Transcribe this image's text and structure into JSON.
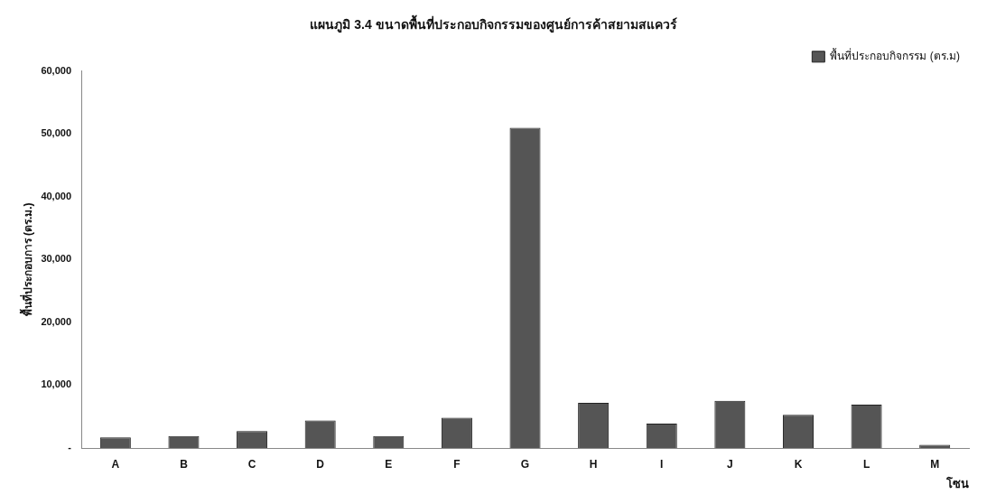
{
  "chart_data": {
    "type": "bar",
    "title": "แผนภูมิ 3.4 ขนาดพื้นที่ประกอบกิจกรรมของศูนย์การค้าสยามสแควร์",
    "xlabel": "โซน",
    "ylabel": "พื้นที่ประกอบการ (ตร.ม.)",
    "categories": [
      "A",
      "B",
      "C",
      "D",
      "E",
      "F",
      "G",
      "H",
      "I",
      "J",
      "K",
      "L",
      "M"
    ],
    "series": [
      {
        "name": "พื้นที่ประกอบกิจกรรม (ตร.ม)",
        "color": "#555555",
        "values": [
          1700,
          1900,
          2700,
          4400,
          1900,
          4800,
          51000,
          7200,
          3900,
          7500,
          5300,
          6900,
          500
        ]
      }
    ],
    "ylim": [
      0,
      60000
    ],
    "yticks": [
      {
        "value": 0,
        "label": "-"
      },
      {
        "value": 10000,
        "label": "10,000"
      },
      {
        "value": 20000,
        "label": "20,000"
      },
      {
        "value": 30000,
        "label": "30,000"
      },
      {
        "value": 40000,
        "label": "40,000"
      },
      {
        "value": 50000,
        "label": "50,000"
      },
      {
        "value": 60000,
        "label": "60,000"
      }
    ],
    "grid": false,
    "legend": "top right"
  }
}
